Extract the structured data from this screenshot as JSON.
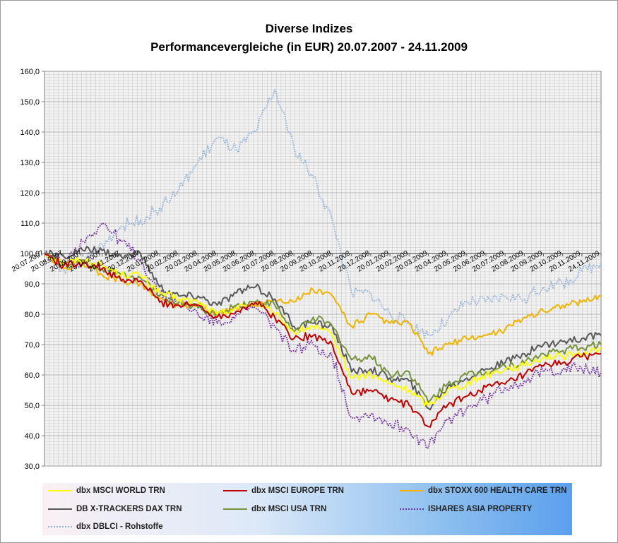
{
  "chart_data": {
    "type": "line",
    "title": "Diverse Indizes",
    "subtitle": "Performancevergleiche (in EUR) 20.07.2007  -  24.11.2009",
    "xlabel": "",
    "ylabel": "",
    "ylim": [
      30,
      160
    ],
    "yticks": [
      30,
      40,
      50,
      60,
      70,
      80,
      90,
      100,
      110,
      120,
      130,
      140,
      150,
      160
    ],
    "ytick_labels": [
      "30,0",
      "40,0",
      "50,0",
      "60,0",
      "70,0",
      "80,0",
      "90,0",
      "100,0",
      "110,0",
      "120,0",
      "130,0",
      "140,0",
      "150,0",
      "160,0"
    ],
    "x_axis_value": 100,
    "grid": true,
    "legend_position": "bottom",
    "x": [
      "20.07.2007",
      "20.08.2007",
      "20.09.2007",
      "20.10.2007",
      "20.11.2007",
      "20.12.2007",
      "20.01.2008",
      "20.02.2008",
      "20.03.2008",
      "20.04.2008",
      "20.05.2008",
      "20.06.2008",
      "20.07.2008",
      "20.08.2008",
      "20.09.2008",
      "20.10.2008",
      "20.11.2008",
      "20.12.2008",
      "20.01.2009",
      "20.02.2009",
      "20.03.2009",
      "20.04.2009",
      "20.05.2009",
      "20.06.2009",
      "20.07.2009",
      "20.08.2009",
      "20.09.2009",
      "20.10.2009",
      "20.11.2009",
      "24.11.2009"
    ],
    "series": [
      {
        "name": "dbx MSCI WORLD TRN",
        "color": "#ffff00",
        "style": "solid",
        "values": [
          100,
          97,
          98,
          96,
          93,
          93,
          87,
          85,
          84,
          80,
          82,
          84,
          80,
          74,
          76,
          73,
          59,
          60,
          57,
          55,
          50,
          55,
          57,
          60,
          62,
          63,
          66,
          66,
          67,
          69
        ]
      },
      {
        "name": "dbx MSCI EUROPE TRN",
        "color": "#c00000",
        "style": "solid",
        "values": [
          100,
          96,
          97,
          95,
          91,
          91,
          84,
          83,
          83,
          79,
          81,
          84,
          79,
          72,
          73,
          70,
          54,
          55,
          52,
          50,
          43,
          50,
          53,
          56,
          57,
          60,
          63,
          64,
          66,
          67
        ]
      },
      {
        "name": "dbx STOXX 600  HEALTH CARE TRN",
        "color": "#f0b400",
        "style": "solid",
        "values": [
          100,
          95,
          97,
          93,
          91,
          90,
          85,
          83,
          83,
          80,
          82,
          83,
          85,
          84,
          88,
          86,
          76,
          80,
          77,
          77,
          67,
          70,
          72,
          73,
          75,
          79,
          81,
          83,
          84,
          86
        ]
      },
      {
        "name": "DB X-TRACKERS DAX TRN",
        "color": "#595959",
        "style": "solid",
        "values": [
          100,
          99,
          101,
          101,
          99,
          100,
          89,
          86,
          86,
          83,
          87,
          89,
          85,
          76,
          77,
          76,
          61,
          62,
          59,
          58,
          49,
          56,
          59,
          62,
          64,
          67,
          70,
          71,
          72,
          73
        ]
      },
      {
        "name": "dbx MSCI USA TRN",
        "color": "#76923c",
        "style": "solid",
        "values": [
          100,
          96,
          97,
          95,
          93,
          92,
          86,
          84,
          82,
          80,
          83,
          84,
          83,
          74,
          79,
          76,
          65,
          66,
          60,
          61,
          51,
          57,
          60,
          61,
          63,
          64,
          67,
          68,
          69,
          70
        ]
      },
      {
        "name": "ISHARES ASIA PROPERTY",
        "color": "#7030a0",
        "style": "dotted",
        "values": [
          100,
          97,
          104,
          110,
          104,
          98,
          86,
          84,
          80,
          77,
          80,
          82,
          76,
          68,
          70,
          66,
          46,
          47,
          44,
          42,
          36,
          45,
          49,
          52,
          56,
          58,
          61,
          62,
          62,
          61
        ]
      },
      {
        "name": "dbx DBLCI - Rohstoffe",
        "color": "#95b3d7",
        "style": "dotted",
        "values": [
          100,
          95,
          97,
          103,
          109,
          111,
          115,
          121,
          130,
          138,
          134,
          140,
          154,
          135,
          125,
          111,
          87,
          87,
          80,
          77,
          73,
          78,
          84,
          84,
          86,
          85,
          89,
          90,
          94,
          97
        ]
      }
    ]
  }
}
